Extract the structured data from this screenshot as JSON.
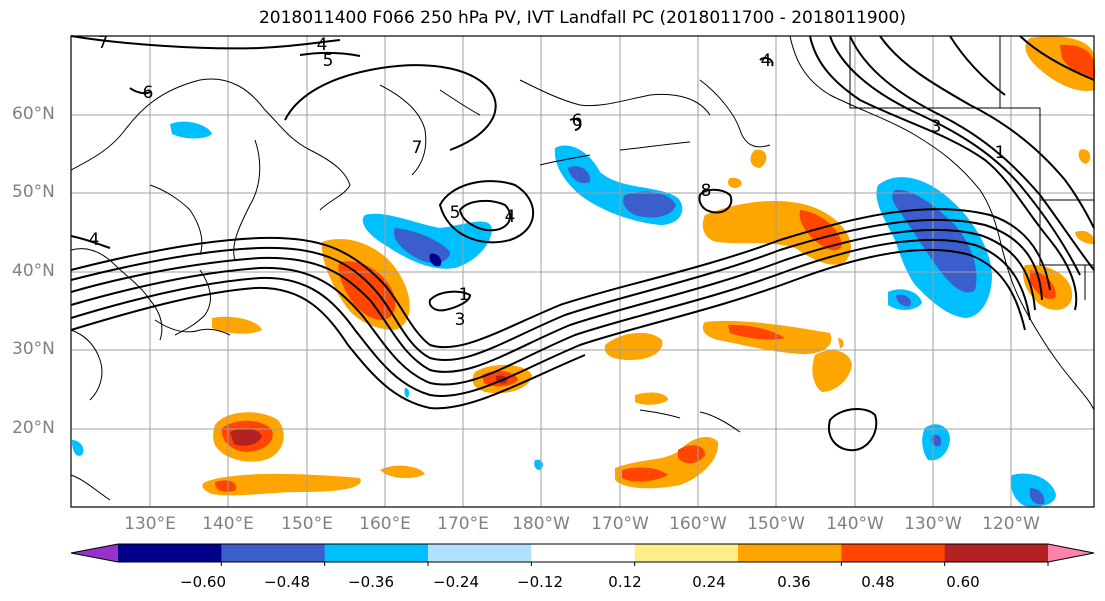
{
  "title": "2018011400 F066 250 hPa PV, IVT Landfall PC (2018011700 - 2018011900)",
  "lat_labels": [
    "60°N",
    "50°N",
    "40°N",
    "30°N",
    "20°N"
  ],
  "lon_labels": [
    "130°E",
    "140°E",
    "150°E",
    "160°E",
    "170°E",
    "180°W",
    "170°W",
    "160°W",
    "150°W",
    "140°W",
    "130°W",
    "120°W"
  ],
  "contour_labels": [
    "4",
    "5",
    "7",
    "6",
    "4",
    "5",
    "4",
    "7",
    "6",
    "8",
    "1",
    "3",
    "4",
    "3",
    "1"
  ],
  "colorbar": {
    "tick_labels": [
      "−0.60",
      "−0.48",
      "−0.36",
      "−0.24",
      "−0.12",
      "0.12",
      "0.24",
      "0.36",
      "0.48",
      "0.60"
    ],
    "colors": [
      "#9932cc",
      "#00008b",
      "#3a5fcd",
      "#00bfff",
      "#b0e2ff",
      "#ffffff",
      "#ffec8b",
      "#ffa500",
      "#ff4500",
      "#b22222",
      "#ff82ab"
    ]
  },
  "colors": {
    "coast": "#000000",
    "grid": "#a0a0a0",
    "contour": "#000000",
    "pos1": "#ffec8b",
    "pos2": "#ffa500",
    "pos3": "#ff4500",
    "pos4": "#b22222",
    "neg1": "#b0e2ff",
    "neg2": "#00bfff",
    "neg3": "#3a5fcd",
    "neg4": "#00008b"
  }
}
